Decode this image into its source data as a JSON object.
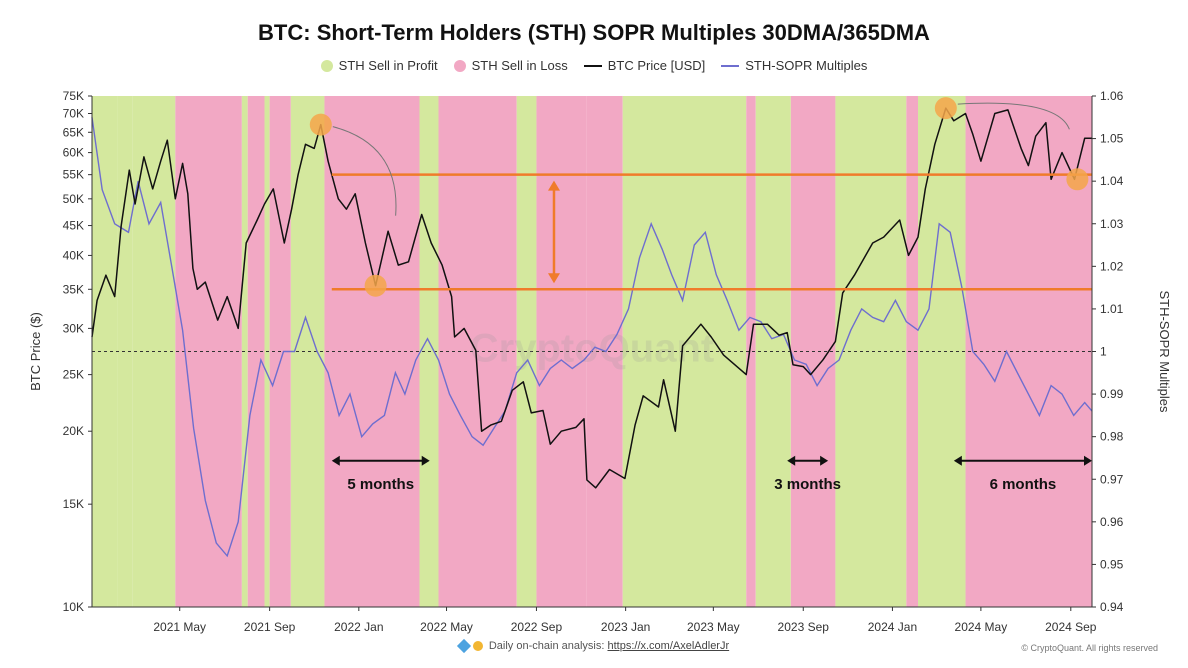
{
  "chart_data": {
    "type": "line",
    "title": "BTC: Short-Term Holders (STH) SOPR Multiples 30DMA/365DMA",
    "legend": {
      "placement": "top-center",
      "items": [
        {
          "label": "STH Sell in Profit",
          "color": "#d4e89e",
          "kind": "area"
        },
        {
          "label": "STH Sell in Loss",
          "color": "#f2a8c4",
          "kind": "area"
        },
        {
          "label": "BTC Price [USD]",
          "color": "#111111",
          "kind": "line"
        },
        {
          "label": "STH-SOPR Multiples",
          "color": "#6e6ecf",
          "kind": "line"
        }
      ]
    },
    "ylabel_left": "BTC Price ($)",
    "ylabel_right": "STH-SOPR Multiples",
    "y_left_scale": "log",
    "y_left_ticks": [
      "10K",
      "15K",
      "20K",
      "25K",
      "30K",
      "35K",
      "40K",
      "45K",
      "50K",
      "55K",
      "60K",
      "65K",
      "70K",
      "75K"
    ],
    "y_left_tick_values": [
      10000,
      15000,
      20000,
      25000,
      30000,
      35000,
      40000,
      45000,
      50000,
      55000,
      60000,
      65000,
      70000,
      75000
    ],
    "ylim_left": [
      10000,
      75000
    ],
    "y_right_ticks": [
      "0.94",
      "0.95",
      "0.96",
      "0.97",
      "0.98",
      "0.99",
      "1",
      "1.01",
      "1.02",
      "1.03",
      "1.04",
      "1.05",
      "1.06"
    ],
    "y_right_tick_values": [
      0.94,
      0.95,
      0.96,
      0.97,
      0.98,
      0.99,
      1.0,
      1.01,
      1.02,
      1.03,
      1.04,
      1.05,
      1.06
    ],
    "ylim_right": [
      0.94,
      1.06
    ],
    "x_range": [
      "2021-01-01",
      "2024-09-30"
    ],
    "x_ticks": [
      {
        "date": "2021-05-01",
        "label": "2021 May"
      },
      {
        "date": "2021-09-01",
        "label": "2021 Sep"
      },
      {
        "date": "2022-01-01",
        "label": "2022 Jan"
      },
      {
        "date": "2022-05-01",
        "label": "2022 May"
      },
      {
        "date": "2022-09-01",
        "label": "2022 Sep"
      },
      {
        "date": "2023-01-01",
        "label": "2023 Jan"
      },
      {
        "date": "2023-05-01",
        "label": "2023 May"
      },
      {
        "date": "2023-09-01",
        "label": "2023 Sep"
      },
      {
        "date": "2024-01-01",
        "label": "2024 Jan"
      },
      {
        "date": "2024-05-01",
        "label": "2024 May"
      },
      {
        "date": "2024-09-01",
        "label": "2024 Sep"
      }
    ],
    "reference_line_right": 1.0,
    "horizontal_lines_left": [
      55000,
      35000
    ],
    "regimes": [
      {
        "start": "2021-01-01",
        "end": "2021-02-05",
        "state": "profit"
      },
      {
        "start": "2021-02-05",
        "end": "2021-02-25",
        "state": "profit"
      },
      {
        "start": "2021-02-25",
        "end": "2021-04-25",
        "state": "profit"
      },
      {
        "start": "2021-04-25",
        "end": "2021-07-25",
        "state": "loss"
      },
      {
        "start": "2021-07-25",
        "end": "2021-08-02",
        "state": "profit"
      },
      {
        "start": "2021-08-02",
        "end": "2021-08-25",
        "state": "loss"
      },
      {
        "start": "2021-08-25",
        "end": "2021-09-01",
        "state": "profit"
      },
      {
        "start": "2021-09-01",
        "end": "2021-09-30",
        "state": "loss"
      },
      {
        "start": "2021-09-30",
        "end": "2021-11-15",
        "state": "profit"
      },
      {
        "start": "2021-11-15",
        "end": "2022-03-25",
        "state": "loss"
      },
      {
        "start": "2022-03-25",
        "end": "2022-04-20",
        "state": "profit"
      },
      {
        "start": "2022-04-20",
        "end": "2022-08-05",
        "state": "loss"
      },
      {
        "start": "2022-08-05",
        "end": "2022-09-01",
        "state": "profit"
      },
      {
        "start": "2022-09-01",
        "end": "2022-11-08",
        "state": "loss"
      },
      {
        "start": "2022-11-08",
        "end": "2022-12-28",
        "state": "loss"
      },
      {
        "start": "2022-12-28",
        "end": "2023-06-15",
        "state": "profit"
      },
      {
        "start": "2023-06-15",
        "end": "2023-06-28",
        "state": "loss"
      },
      {
        "start": "2023-06-28",
        "end": "2023-08-15",
        "state": "profit"
      },
      {
        "start": "2023-08-15",
        "end": "2023-10-15",
        "state": "loss"
      },
      {
        "start": "2023-10-15",
        "end": "2024-01-20",
        "state": "profit"
      },
      {
        "start": "2024-01-20",
        "end": "2024-02-05",
        "state": "loss"
      },
      {
        "start": "2024-02-05",
        "end": "2024-04-10",
        "state": "profit"
      },
      {
        "start": "2024-04-10",
        "end": "2024-09-30",
        "state": "loss"
      }
    ],
    "btc_price": {
      "name": "BTC Price [USD]",
      "dates": [
        "2021-01-01",
        "2021-01-08",
        "2021-01-20",
        "2021-02-01",
        "2021-02-10",
        "2021-02-21",
        "2021-03-01",
        "2021-03-13",
        "2021-03-25",
        "2021-04-05",
        "2021-04-14",
        "2021-04-25",
        "2021-05-05",
        "2021-05-12",
        "2021-05-19",
        "2021-05-25",
        "2021-06-05",
        "2021-06-22",
        "2021-07-05",
        "2021-07-20",
        "2021-07-31",
        "2021-08-15",
        "2021-08-25",
        "2021-09-06",
        "2021-09-21",
        "2021-10-01",
        "2021-10-10",
        "2021-10-20",
        "2021-11-01",
        "2021-11-10",
        "2021-11-20",
        "2021-12-04",
        "2021-12-15",
        "2021-12-27",
        "2022-01-10",
        "2022-01-24",
        "2022-02-10",
        "2022-02-24",
        "2022-03-10",
        "2022-03-28",
        "2022-04-10",
        "2022-04-25",
        "2022-05-08",
        "2022-05-12",
        "2022-05-25",
        "2022-06-10",
        "2022-06-18",
        "2022-07-01",
        "2022-07-15",
        "2022-07-30",
        "2022-08-14",
        "2022-08-25",
        "2022-09-10",
        "2022-09-20",
        "2022-10-05",
        "2022-10-25",
        "2022-11-05",
        "2022-11-09",
        "2022-11-21",
        "2022-12-10",
        "2022-12-31",
        "2023-01-14",
        "2023-01-25",
        "2023-02-15",
        "2023-02-22",
        "2023-03-10",
        "2023-03-20",
        "2023-04-14",
        "2023-04-28",
        "2023-05-15",
        "2023-06-15",
        "2023-06-25",
        "2023-07-14",
        "2023-07-30",
        "2023-08-10",
        "2023-08-18",
        "2023-09-01",
        "2023-09-11",
        "2023-09-28",
        "2023-10-15",
        "2023-10-25",
        "2023-11-10",
        "2023-12-05",
        "2023-12-20",
        "2024-01-11",
        "2024-01-23",
        "2024-02-05",
        "2024-02-15",
        "2024-02-28",
        "2024-03-14",
        "2024-03-25",
        "2024-04-10",
        "2024-04-20",
        "2024-05-01",
        "2024-05-20",
        "2024-06-07",
        "2024-06-25",
        "2024-07-05",
        "2024-07-15",
        "2024-07-29",
        "2024-08-05",
        "2024-08-20",
        "2024-09-06",
        "2024-09-20",
        "2024-09-30"
      ],
      "values": [
        29000,
        33500,
        37000,
        34000,
        45000,
        56000,
        49000,
        59000,
        52000,
        58000,
        63000,
        50000,
        57500,
        51000,
        38000,
        35000,
        36000,
        31000,
        34000,
        30000,
        42000,
        46000,
        49000,
        52000,
        42000,
        48000,
        55000,
        62000,
        61000,
        67000,
        58000,
        50000,
        48000,
        51000,
        42000,
        35500,
        44000,
        38500,
        39000,
        47000,
        42000,
        38500,
        34000,
        29000,
        30000,
        27500,
        20000,
        20500,
        20800,
        23500,
        24300,
        21500,
        21700,
        19000,
        20000,
        20300,
        21000,
        16500,
        16000,
        17200,
        16600,
        20500,
        23000,
        22000,
        24500,
        20000,
        28000,
        30500,
        29000,
        27000,
        25000,
        30500,
        30500,
        29200,
        29500,
        26000,
        25800,
        25000,
        26500,
        28500,
        34500,
        37000,
        42000,
        43000,
        46000,
        40000,
        43000,
        52000,
        62000,
        71500,
        68000,
        70000,
        64500,
        58000,
        70000,
        71000,
        61000,
        57000,
        64000,
        67500,
        54000,
        60000,
        54000,
        63500,
        63500
      ]
    },
    "sopr_multiples": {
      "name": "STH-SOPR Multiples",
      "dates": [
        "2021-01-01",
        "2021-01-15",
        "2021-02-01",
        "2021-02-20",
        "2021-03-05",
        "2021-03-20",
        "2021-04-05",
        "2021-04-20",
        "2021-05-05",
        "2021-05-20",
        "2021-06-05",
        "2021-06-20",
        "2021-07-05",
        "2021-07-20",
        "2021-08-05",
        "2021-08-20",
        "2021-09-05",
        "2021-09-20",
        "2021-10-05",
        "2021-10-20",
        "2021-11-05",
        "2021-11-20",
        "2021-12-05",
        "2021-12-20",
        "2022-01-05",
        "2022-01-20",
        "2022-02-05",
        "2022-02-20",
        "2022-03-05",
        "2022-03-20",
        "2022-04-05",
        "2022-04-20",
        "2022-05-05",
        "2022-05-20",
        "2022-06-05",
        "2022-06-20",
        "2022-07-05",
        "2022-07-20",
        "2022-08-05",
        "2022-08-20",
        "2022-09-05",
        "2022-09-20",
        "2022-10-05",
        "2022-10-20",
        "2022-11-05",
        "2022-11-20",
        "2022-12-05",
        "2022-12-20",
        "2023-01-05",
        "2023-01-20",
        "2023-02-05",
        "2023-02-20",
        "2023-03-05",
        "2023-03-20",
        "2023-04-05",
        "2023-04-20",
        "2023-05-05",
        "2023-05-20",
        "2023-06-05",
        "2023-06-20",
        "2023-07-05",
        "2023-07-20",
        "2023-08-05",
        "2023-08-20",
        "2023-09-05",
        "2023-09-20",
        "2023-10-05",
        "2023-10-20",
        "2023-11-05",
        "2023-11-20",
        "2023-12-05",
        "2023-12-20",
        "2024-01-05",
        "2024-01-20",
        "2024-02-05",
        "2024-02-20",
        "2024-03-05",
        "2024-03-20",
        "2024-04-05",
        "2024-04-20",
        "2024-05-05",
        "2024-05-20",
        "2024-06-05",
        "2024-06-20",
        "2024-07-05",
        "2024-07-20",
        "2024-08-05",
        "2024-08-20",
        "2024-09-05",
        "2024-09-20",
        "2024-09-30"
      ],
      "values": [
        1.055,
        1.038,
        1.03,
        1.028,
        1.04,
        1.03,
        1.035,
        1.02,
        1.005,
        0.982,
        0.965,
        0.955,
        0.952,
        0.96,
        0.985,
        0.998,
        0.992,
        1.0,
        1.0,
        1.008,
        1.0,
        0.995,
        0.985,
        0.99,
        0.98,
        0.983,
        0.985,
        0.995,
        0.99,
        0.998,
        1.003,
        0.998,
        0.99,
        0.985,
        0.98,
        0.978,
        0.982,
        0.986,
        0.995,
        0.998,
        0.992,
        0.996,
        0.998,
        0.996,
        0.998,
        1.001,
        1.0,
        1.004,
        1.01,
        1.022,
        1.03,
        1.024,
        1.018,
        1.012,
        1.025,
        1.028,
        1.018,
        1.012,
        1.005,
        1.008,
        1.007,
        1.003,
        1.004,
        0.998,
        0.997,
        0.992,
        0.996,
        0.998,
        1.005,
        1.01,
        1.008,
        1.007,
        1.012,
        1.007,
        1.005,
        1.01,
        1.03,
        1.028,
        1.015,
        1.0,
        0.997,
        0.993,
        1.0,
        0.995,
        0.99,
        0.985,
        0.992,
        0.99,
        0.985,
        0.988,
        0.986
      ]
    },
    "annotations": [
      {
        "label": "5 months",
        "start": "2021-11-25",
        "end": "2022-04-08",
        "y_value": 17800
      },
      {
        "label": "3 months",
        "start": "2023-08-10",
        "end": "2023-10-05",
        "y_value": 17800
      },
      {
        "label": "6 months",
        "start": "2024-03-25",
        "end": "2024-09-30",
        "y_value": 17800
      }
    ],
    "highlight_points": [
      {
        "date": "2021-11-10",
        "value": 67000
      },
      {
        "date": "2022-01-24",
        "value": 35500
      },
      {
        "date": "2024-03-14",
        "value": 71500
      },
      {
        "date": "2024-09-10",
        "value": 54000
      }
    ],
    "watermark": "CryptoQuant"
  },
  "footer": {
    "text": "Daily on-chain analysis: ",
    "link": "https://x.com/AxelAdlerJr",
    "copyright": "© CryptoQuant. All rights reserved"
  }
}
